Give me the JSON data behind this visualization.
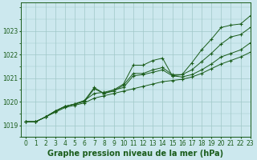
{
  "background_color": "#cce8ee",
  "grid_color": "#a0c8c8",
  "line_color": "#1a5c1a",
  "title": "Graphe pression niveau de la mer (hPa)",
  "xlim": [
    -0.5,
    23
  ],
  "ylim": [
    1018.5,
    1024.2
  ],
  "yticks": [
    1019,
    1020,
    1021,
    1022,
    1023
  ],
  "xticks": [
    0,
    1,
    2,
    3,
    4,
    5,
    6,
    7,
    8,
    9,
    10,
    11,
    12,
    13,
    14,
    15,
    16,
    17,
    18,
    19,
    20,
    21,
    22,
    23
  ],
  "line_base": [
    1019.15,
    1019.15,
    1019.35,
    1019.55,
    1019.75,
    1019.85,
    1019.95,
    1020.15,
    1020.25,
    1020.35,
    1020.45,
    1020.55,
    1020.65,
    1020.75,
    1020.85,
    1020.9,
    1020.95,
    1021.05,
    1021.2,
    1021.4,
    1021.6,
    1021.75,
    1021.9,
    1022.1
  ],
  "line_mid1": [
    1019.15,
    1019.15,
    1019.35,
    1019.6,
    1019.8,
    1019.9,
    1020.05,
    1020.35,
    1020.4,
    1020.5,
    1020.6,
    1021.1,
    1021.15,
    1021.25,
    1021.35,
    1021.1,
    1021.05,
    1021.15,
    1021.35,
    1021.6,
    1021.9,
    1022.05,
    1022.2,
    1022.5
  ],
  "line_mid2": [
    1019.15,
    1019.15,
    1019.35,
    1019.6,
    1019.8,
    1019.9,
    1020.0,
    1020.55,
    1020.35,
    1020.45,
    1020.7,
    1021.2,
    1021.2,
    1021.35,
    1021.45,
    1021.15,
    1021.15,
    1021.35,
    1021.7,
    1022.05,
    1022.45,
    1022.75,
    1022.85,
    1023.15
  ],
  "line_top": [
    1019.15,
    1019.15,
    1019.35,
    1019.6,
    1019.8,
    1019.9,
    1020.05,
    1020.6,
    1020.35,
    1020.5,
    1020.75,
    1021.55,
    1021.55,
    1021.75,
    1021.85,
    1021.1,
    1021.15,
    1021.65,
    1022.2,
    1022.65,
    1023.15,
    1023.25,
    1023.3,
    1023.65
  ],
  "title_fontsize": 7,
  "tick_fontsize": 5.5
}
